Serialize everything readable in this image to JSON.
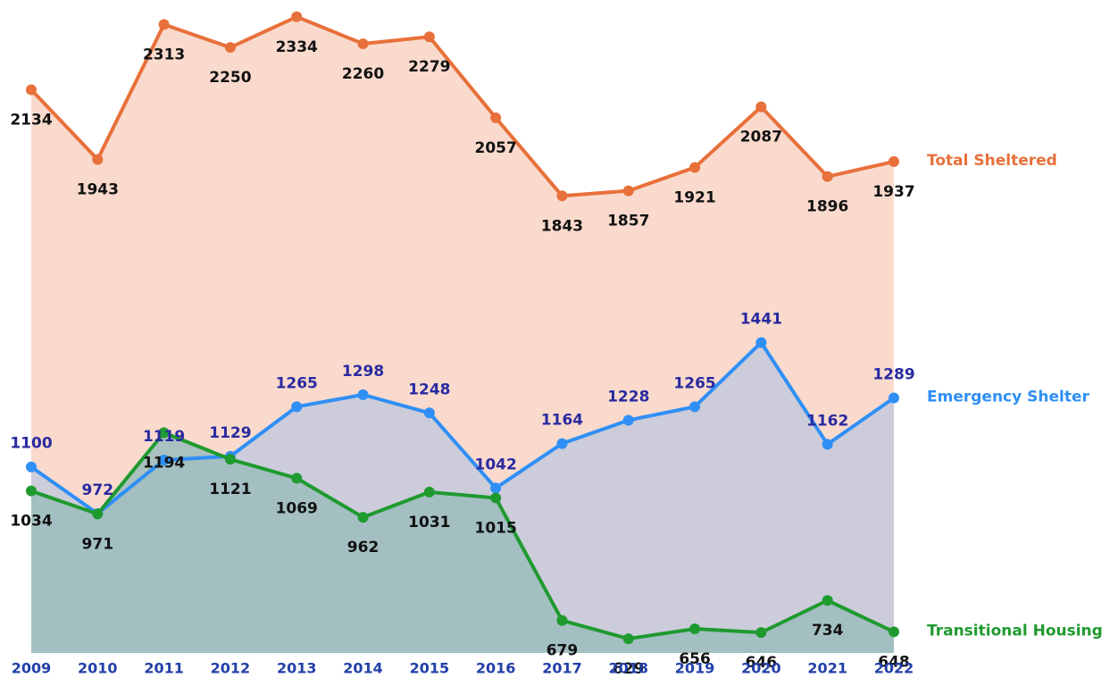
{
  "chart_data": {
    "type": "area-line",
    "categories": [
      "2009",
      "2010",
      "2011",
      "2012",
      "2013",
      "2014",
      "2015",
      "2016",
      "2017",
      "2018",
      "2019",
      "2020",
      "2021",
      "2022"
    ],
    "series": [
      {
        "name": "Total Sheltered",
        "color": "#e8703a",
        "fill": "#f9dacd",
        "label_color": "#111111",
        "label_position": "below",
        "values": [
          2134,
          1943,
          2313,
          2250,
          2334,
          2260,
          2279,
          2057,
          1843,
          1857,
          1921,
          2087,
          1896,
          1937
        ]
      },
      {
        "name": "Emergency Shelter",
        "color": "#2f8ff5",
        "fill": "#c4c9dc",
        "label_color": "#2a2aa0",
        "label_position": "above",
        "values": [
          1100,
          972,
          1119,
          1129,
          1265,
          1298,
          1248,
          1042,
          1164,
          1228,
          1265,
          1441,
          1162,
          1289
        ]
      },
      {
        "name": "Transitional Housing",
        "color": "#1f9a2f",
        "fill": "#9bbcbc",
        "label_color": "#111111",
        "label_position": "below",
        "values": [
          1034,
          971,
          1194,
          1121,
          1069,
          962,
          1031,
          1015,
          679,
          629,
          656,
          646,
          734,
          648
        ]
      }
    ],
    "ylim": [
      590,
      2380
    ]
  }
}
